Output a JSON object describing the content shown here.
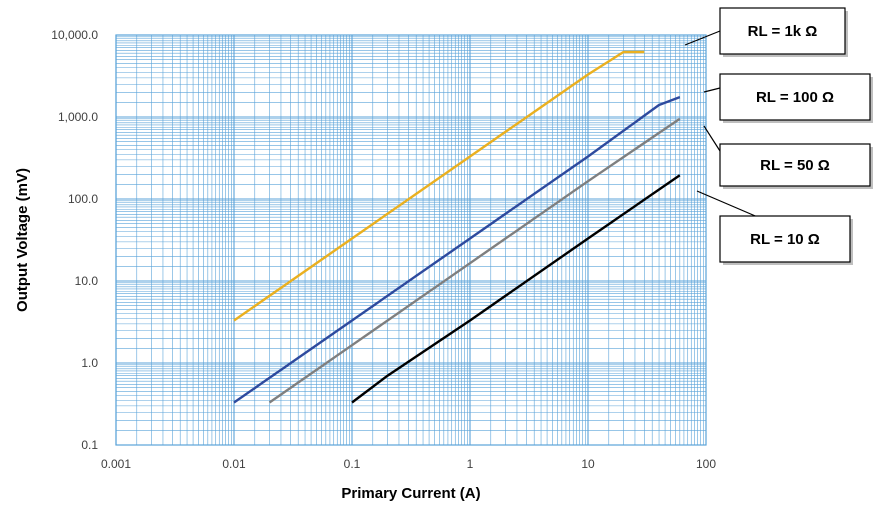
{
  "colors": {
    "grid": "#5BA3D9",
    "background": "#ffffff",
    "series": [
      "#EAB020",
      "#2E4A9E",
      "#7F7F7F",
      "#000000"
    ]
  },
  "chart_data": {
    "type": "line",
    "title": "",
    "xlabel": "Primary Current (A)",
    "ylabel": "Output Voltage (mV)",
    "xscale": "log",
    "yscale": "log",
    "xlim": [
      0.001,
      100
    ],
    "ylim": [
      0.1,
      10000
    ],
    "grid": true,
    "x_ticks": [
      "0.001",
      "0.01",
      "0.1",
      "1",
      "10",
      "100"
    ],
    "y_ticks": [
      "0.1",
      "1.0",
      "10.0",
      "100.0",
      "1,000.0",
      "10,000.0"
    ],
    "series": [
      {
        "name": "RL = 1k Ω",
        "x": [
          0.01,
          0.1,
          1,
          10,
          20,
          30
        ],
        "y": [
          3.3,
          33,
          330,
          3300,
          6200,
          6200
        ]
      },
      {
        "name": "RL = 100 Ω",
        "x": [
          0.01,
          0.1,
          1,
          10,
          40,
          60
        ],
        "y": [
          0.33,
          3.3,
          33,
          330,
          1400,
          1750
        ]
      },
      {
        "name": "RL = 50 Ω",
        "x": [
          0.02,
          0.1,
          1,
          10,
          60
        ],
        "y": [
          0.33,
          1.65,
          16.5,
          165,
          950
        ]
      },
      {
        "name": "RL = 10 Ω",
        "x": [
          0.1,
          0.2,
          1,
          10,
          60
        ],
        "y": [
          0.33,
          0.7,
          3.3,
          33,
          195
        ]
      }
    ],
    "callouts": [
      "RL = 1k Ω",
      "RL = 100 Ω",
      "RL = 50 Ω",
      "RL = 10 Ω"
    ]
  }
}
